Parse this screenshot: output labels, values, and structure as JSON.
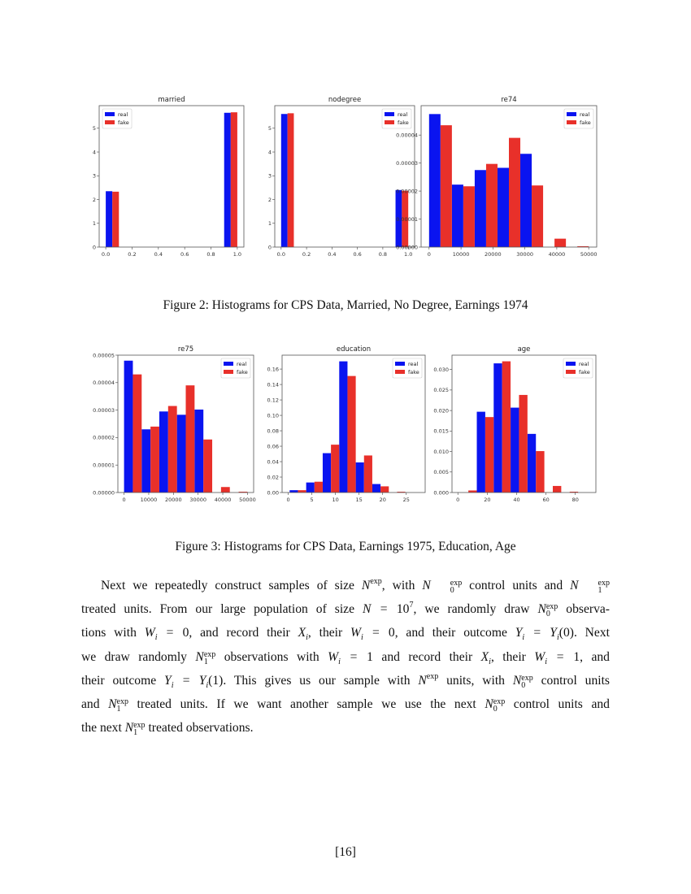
{
  "colors": {
    "real": "#0a14f0",
    "fake": "#e8302a"
  },
  "legend": {
    "real": "real",
    "fake": "fake"
  },
  "chart_data": [
    {
      "type": "bar",
      "title": "married",
      "legend_position": "upper-left",
      "bin_starts": [
        0.0,
        0.9
      ],
      "bin_width": 0.1,
      "series": [
        {
          "name": "real",
          "values": [
            2.35,
            5.65
          ]
        },
        {
          "name": "fake",
          "values": [
            2.33,
            5.67
          ]
        }
      ],
      "xlim": [
        -0.05,
        1.05
      ],
      "ylim": [
        0,
        5.95
      ],
      "xticks": [
        0,
        0.2,
        0.4,
        0.6,
        0.8,
        1.0
      ],
      "xtick_labels": [
        "0.0",
        "0.2",
        "0.4",
        "0.6",
        "0.8",
        "1.0"
      ],
      "yticks": [
        0,
        1,
        2,
        3,
        4,
        5
      ],
      "ytick_labels": [
        "0",
        "1",
        "2",
        "3",
        "4",
        "5"
      ]
    },
    {
      "type": "bar",
      "title": "nodegree",
      "legend_position": "upper-right",
      "bin_starts": [
        0.0,
        0.9
      ],
      "bin_width": 0.1,
      "series": [
        {
          "name": "real",
          "values": [
            5.6,
            2.4
          ]
        },
        {
          "name": "fake",
          "values": [
            5.63,
            2.37
          ]
        }
      ],
      "xlim": [
        -0.05,
        1.05
      ],
      "ylim": [
        0,
        5.95
      ],
      "xticks": [
        0,
        0.2,
        0.4,
        0.6,
        0.8,
        1.0
      ],
      "xtick_labels": [
        "0.0",
        "0.2",
        "0.4",
        "0.6",
        "0.8",
        "1.0"
      ],
      "yticks": [
        0,
        1,
        2,
        3,
        4,
        5
      ],
      "ytick_labels": [
        "0",
        "1",
        "2",
        "3",
        "4",
        "5"
      ]
    },
    {
      "type": "bar",
      "title": "re74",
      "legend_position": "upper-right",
      "bin_starts": [
        0,
        7143,
        14286,
        21429,
        28571,
        35714,
        42857
      ],
      "bin_width": 7143,
      "series": [
        {
          "name": "real",
          "values": [
            4.75e-05,
            2.23e-05,
            2.75e-05,
            2.83e-05,
            3.33e-05,
            0,
            0
          ]
        },
        {
          "name": "fake",
          "values": [
            4.35e-05,
            2.17e-05,
            2.97e-05,
            3.9e-05,
            2.2e-05,
            3e-06,
            3e-07
          ]
        }
      ],
      "xlim": [
        -2500,
        52500
      ],
      "ylim": [
        0,
        5.05e-05
      ],
      "xticks": [
        0,
        10000,
        20000,
        30000,
        40000,
        50000
      ],
      "xtick_labels": [
        "0",
        "10000",
        "20000",
        "30000",
        "40000",
        "50000"
      ],
      "yticks": [
        0,
        1e-05,
        2e-05,
        3e-05,
        4e-05
      ],
      "ytick_labels": [
        "0.00000",
        "0.00001",
        "0.00002",
        "0.00003",
        "0.00004"
      ]
    },
    {
      "type": "bar",
      "title": "re75",
      "legend_position": "upper-right",
      "bin_starts": [
        0,
        7143,
        14286,
        21429,
        28571,
        35714,
        42857
      ],
      "bin_width": 7143,
      "series": [
        {
          "name": "real",
          "values": [
            4.8e-05,
            2.3e-05,
            2.95e-05,
            2.83e-05,
            3.02e-05,
            0,
            0
          ]
        },
        {
          "name": "fake",
          "values": [
            4.3e-05,
            2.4e-05,
            3.15e-05,
            3.9e-05,
            1.93e-05,
            2e-06,
            3e-07
          ]
        }
      ],
      "xlim": [
        -2500,
        52500
      ],
      "ylim": [
        0,
        5e-05
      ],
      "xticks": [
        0,
        10000,
        20000,
        30000,
        40000,
        50000
      ],
      "xtick_labels": [
        "0",
        "10000",
        "20000",
        "30000",
        "40000",
        "50000"
      ],
      "yticks": [
        0,
        1e-05,
        2e-05,
        3e-05,
        4e-05,
        5e-05
      ],
      "ytick_labels": [
        "0.00000",
        "0.00001",
        "0.00002",
        "0.00003",
        "0.00004",
        "0.00005"
      ]
    },
    {
      "type": "bar",
      "title": "education",
      "legend_position": "upper-right",
      "bin_starts": [
        0.3,
        3.8,
        7.3,
        10.8,
        14.3,
        17.8,
        21.3
      ],
      "bin_width": 3.5,
      "series": [
        {
          "name": "real",
          "values": [
            0.003,
            0.013,
            0.051,
            0.17,
            0.039,
            0.011,
            0
          ]
        },
        {
          "name": "fake",
          "values": [
            0.003,
            0.014,
            0.062,
            0.151,
            0.048,
            0.008,
            0.001
          ]
        }
      ],
      "xlim": [
        -1.3,
        29
      ],
      "ylim": [
        0,
        0.178
      ],
      "xticks": [
        0,
        5,
        10,
        15,
        20,
        25
      ],
      "xtick_labels": [
        "0",
        "5",
        "10",
        "15",
        "20",
        "25"
      ],
      "yticks": [
        0,
        0.02,
        0.04,
        0.06,
        0.08,
        0.1,
        0.12,
        0.14,
        0.16
      ],
      "ytick_labels": [
        "0.00",
        "0.02",
        "0.04",
        "0.06",
        "0.08",
        "0.10",
        "0.12",
        "0.14",
        "0.16"
      ]
    },
    {
      "type": "bar",
      "title": "age",
      "legend_position": "upper-right",
      "bin_starts": [
        1.4,
        12.9,
        24.4,
        35.9,
        47.4,
        58.9,
        70.4
      ],
      "bin_width": 11.5,
      "series": [
        {
          "name": "real",
          "values": [
            0,
            0.0197,
            0.0315,
            0.0207,
            0.0143,
            0,
            0
          ]
        },
        {
          "name": "fake",
          "values": [
            0.0005,
            0.0184,
            0.032,
            0.0238,
            0.0101,
            0.0016,
            0.0002
          ]
        }
      ],
      "xlim": [
        -4,
        94
      ],
      "ylim": [
        0,
        0.0335
      ],
      "xticks": [
        0,
        20,
        40,
        60,
        80
      ],
      "xtick_labels": [
        "0",
        "20",
        "40",
        "60",
        "80"
      ],
      "yticks": [
        0,
        0.005,
        0.01,
        0.015,
        0.02,
        0.025,
        0.03
      ],
      "ytick_labels": [
        "0.000",
        "0.005",
        "0.010",
        "0.015",
        "0.020",
        "0.025",
        "0.030"
      ]
    }
  ],
  "captions": {
    "figure2": "Figure 2: Histograms for CPS Data, Married, No Degree, Earnings 1974",
    "figure3": "Figure 3: Histograms for CPS Data, Earnings 1975, Education, Age"
  },
  "paragraph_lines": [
    "Next we repeatedly construct samples of size $N^{exp}$, with $N^{exp}_{0}$ control units and $N^{exp}_{1}$",
    "treated units. From our large population of size $N = 10^{7}$, we randomly draw $N^{exp}_{0}$ observa-",
    "tions with $W_{i} = 0$, and record their $X_{i}$, their $W_{i} = 0$, and their outcome $Y_{i} = Y_{i}(0)$. Next",
    "we draw randomly $N^{exp}_{1}$ observations with $W_{i} = 1$ and record their $X_{i}$, their $W_{i} = 1$, and",
    "their outcome $Y_{i} = Y_{i}(1)$. This gives us our sample with $N^{exp}$ units, with $N^{exp}_{0}$ control units",
    "and $N^{exp}_{1}$ treated units. If we want another sample we use the next $N^{exp}_{0}$ control units and",
    "the next $N^{exp}_{1}$ treated observations."
  ],
  "page_number": "[16]"
}
